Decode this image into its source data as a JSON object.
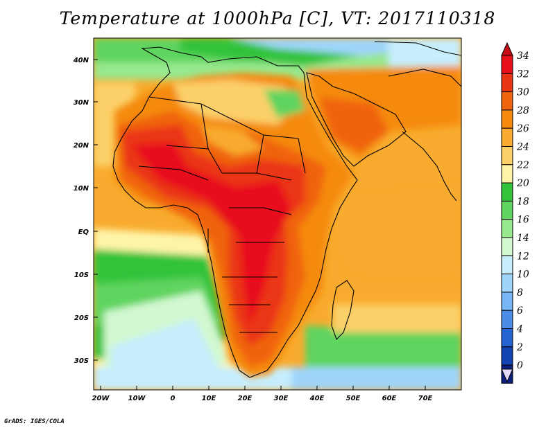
{
  "title": "Temperature at 1000hPa [C], VT: 2017110318",
  "footer": "GrADS: IGES/COLA",
  "map": {
    "lat_labels": [
      "40N",
      "30N",
      "20N",
      "10N",
      "EQ",
      "10S",
      "20S",
      "30S"
    ],
    "lon_labels": [
      "20W",
      "10W",
      "0",
      "10E",
      "20E",
      "30E",
      "40E",
      "50E",
      "60E",
      "70E"
    ]
  },
  "colorbar": {
    "labels": [
      "34",
      "32",
      "30",
      "28",
      "26",
      "24",
      "22",
      "20",
      "18",
      "16",
      "14",
      "12",
      "10",
      "8",
      "6",
      "4",
      "2",
      "0"
    ],
    "colors": [
      "#e8111a",
      "#ea3512",
      "#f0640e",
      "#f58a0d",
      "#f8ab2e",
      "#fbd069",
      "#fef4a8",
      "#33c33a",
      "#5fd45f",
      "#98e88e",
      "#d2f8d0",
      "#c6eefd",
      "#9fd5fb",
      "#76b5f6",
      "#4b8ce6",
      "#2563d3",
      "#1443b2",
      "#0a1f7e"
    ],
    "top_color": "#c80b14",
    "bottom_color": "#e2d8f8"
  }
}
